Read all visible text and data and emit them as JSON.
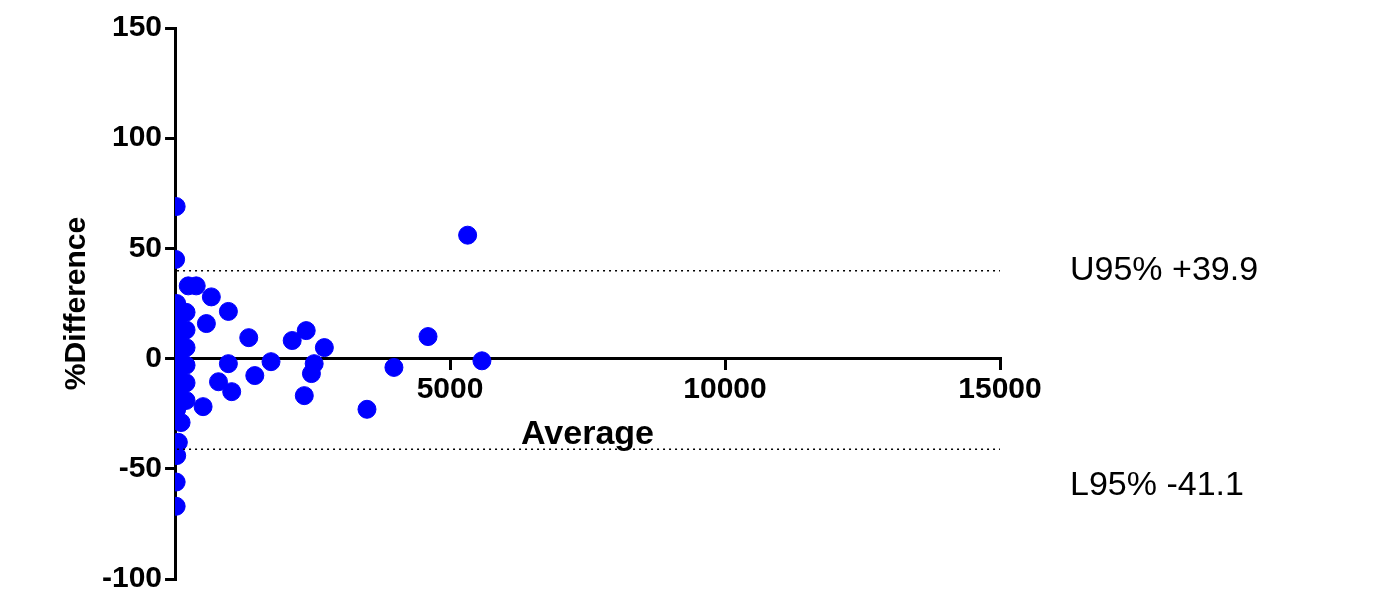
{
  "chart_data": {
    "type": "scatter",
    "xlabel": "Average",
    "ylabel": "%Difference",
    "xlim": [
      0,
      15000
    ],
    "ylim": [
      -100,
      150
    ],
    "xticks": [
      5000,
      10000,
      15000
    ],
    "yticks": [
      -100,
      -50,
      0,
      50,
      100,
      150
    ],
    "grid": false,
    "legend": false,
    "marker": "circle",
    "series": [
      {
        "color": "#0000ff",
        "x": [
          20,
          10,
          5320,
          4600,
          5580,
          3980,
          3490,
          2385,
          2130,
          2715,
          2530,
          2480,
          2350,
          1745,
          1340,
          1450,
          970,
          1030,
          970,
          570,
          660,
          510,
          790,
          240,
          385,
          20,
          20,
          60,
          30,
          110,
          30,
          30,
          30,
          30,
          30,
          30,
          30,
          200,
          200,
          200,
          200,
          200,
          200
        ],
        "values": [
          69,
          45,
          56,
          10,
          -1,
          -4,
          -23,
          12.7,
          8.2,
          5,
          -2.3,
          -6.8,
          -16.8,
          -1.4,
          9.5,
          -7.7,
          -2.3,
          -15,
          21.4,
          15.9,
          28,
          -21.8,
          -10.5,
          33,
          33,
          -56,
          -67,
          -38,
          -44,
          -29,
          25,
          17,
          9,
          1,
          -7,
          -15,
          -23,
          21,
          13,
          5,
          -3,
          -11,
          -19
        ]
      }
    ],
    "ref_lines": [
      {
        "axis": "y",
        "value": 39.9,
        "label": "U95% +39.9",
        "color": "#000000",
        "line_style": "dotted"
      },
      {
        "axis": "y",
        "value": -41.1,
        "label": "L95% -41.1",
        "color": "#000000",
        "line_style": "dotted"
      }
    ]
  }
}
